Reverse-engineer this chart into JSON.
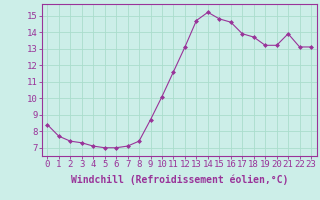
{
  "x": [
    0,
    1,
    2,
    3,
    4,
    5,
    6,
    7,
    8,
    9,
    10,
    11,
    12,
    13,
    14,
    15,
    16,
    17,
    18,
    19,
    20,
    21,
    22,
    23
  ],
  "y": [
    8.4,
    7.7,
    7.4,
    7.3,
    7.1,
    7.0,
    7.0,
    7.1,
    7.4,
    8.7,
    10.1,
    11.6,
    13.1,
    14.7,
    15.2,
    14.8,
    14.6,
    13.9,
    13.7,
    13.2,
    13.2,
    13.9,
    13.1,
    13.1
  ],
  "line_color": "#993399",
  "marker": "D",
  "marker_size": 2,
  "bg_color": "#cceee8",
  "grid_color": "#aaddcc",
  "xlabel": "Windchill (Refroidissement éolien,°C)",
  "xlabel_fontsize": 7,
  "ylim": [
    6.5,
    15.7
  ],
  "yticks": [
    7,
    8,
    9,
    10,
    11,
    12,
    13,
    14,
    15
  ],
  "xticks": [
    0,
    1,
    2,
    3,
    4,
    5,
    6,
    7,
    8,
    9,
    10,
    11,
    12,
    13,
    14,
    15,
    16,
    17,
    18,
    19,
    20,
    21,
    22,
    23
  ],
  "tick_fontsize": 6.5,
  "spine_color": "#993399",
  "axis_color": "#993399"
}
